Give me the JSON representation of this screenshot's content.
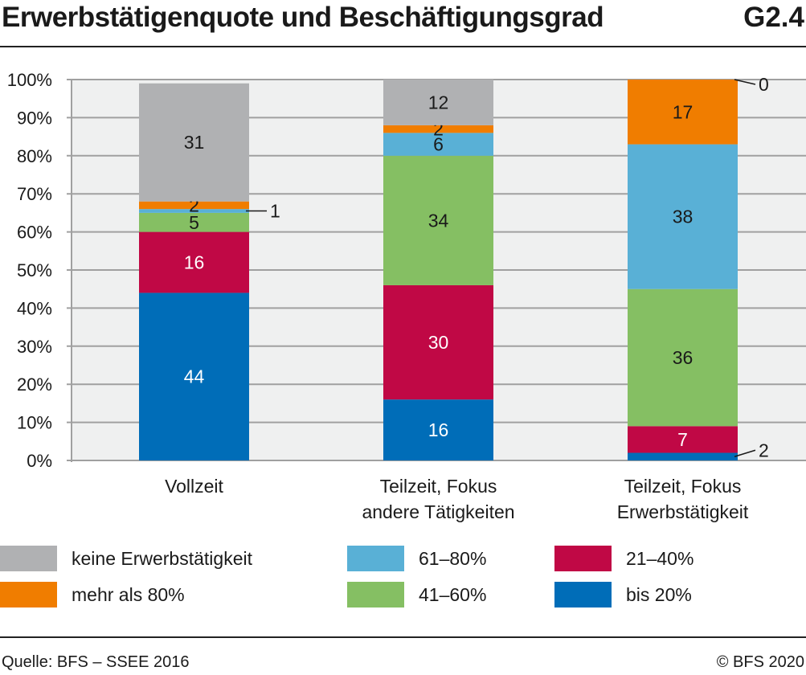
{
  "header": {
    "title": "Erwerbstätigenquote und Beschäftigungsgrad",
    "code": "G2.4"
  },
  "footer": {
    "source": "Quelle: BFS – SSEE 2016",
    "copyright": "© BFS 2020"
  },
  "chart_data": {
    "type": "bar",
    "stacked": true,
    "title": "Erwerbstätigenquote und Beschäftigungsgrad",
    "xlabel": "",
    "ylabel": "",
    "ylim": [
      0,
      100
    ],
    "yticks": [
      "0%",
      "10%",
      "20%",
      "30%",
      "40%",
      "50%",
      "60%",
      "70%",
      "80%",
      "90%",
      "100%"
    ],
    "grid": true,
    "legend_position": "bottom",
    "categories": [
      "Vollzeit",
      "Teilzeit, Fokus andere Tätigkeiten",
      "Teilzeit, Fokus Erwerbstätigkeit"
    ],
    "category_lines": [
      [
        "Vollzeit"
      ],
      [
        "Teilzeit, Fokus",
        "andere Tätigkeiten"
      ],
      [
        "Teilzeit, Fokus",
        "Erwerbstätigkeit"
      ]
    ],
    "series": [
      {
        "name": "bis 20%",
        "color": "#006db8",
        "label_color": "#ffffff",
        "values": [
          44,
          16,
          2
        ]
      },
      {
        "name": "21–40%",
        "color": "#c00845",
        "label_color": "#ffffff",
        "values": [
          16,
          30,
          7
        ]
      },
      {
        "name": "41–60%",
        "color": "#85bf63",
        "label_color": "#1a1a1a",
        "values": [
          5,
          34,
          36
        ]
      },
      {
        "name": "61–80%",
        "color": "#59b0d6",
        "label_color": "#1a1a1a",
        "values": [
          1,
          6,
          38
        ]
      },
      {
        "name": "mehr als 80%",
        "color": "#f07d00",
        "label_color": "#1a1a1a",
        "values": [
          2,
          2,
          17
        ]
      },
      {
        "name": "keine Erwerbstätigkeit",
        "color": "#b0b1b3",
        "label_color": "#1a1a1a",
        "values": [
          31,
          12,
          0
        ]
      }
    ],
    "legend_order": [
      "keine Erwerbstätigkeit",
      "61–80%",
      "21–40%",
      "mehr als 80%",
      "41–60%",
      "bis 20%"
    ]
  }
}
